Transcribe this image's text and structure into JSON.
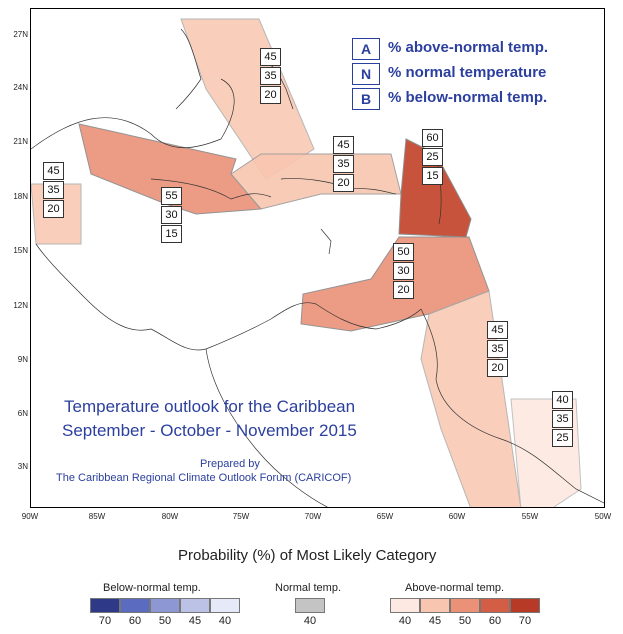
{
  "y_ticks": [
    "27N",
    "24N",
    "21N",
    "18N",
    "15N",
    "12N",
    "9N",
    "6N",
    "3N"
  ],
  "x_ticks": [
    "90W",
    "85W",
    "80W",
    "75W",
    "70W",
    "65W",
    "60W",
    "55W",
    "50W"
  ],
  "key": [
    {
      "letter": "A",
      "text": "% above-normal temp."
    },
    {
      "letter": "N",
      "text": "% normal temperature"
    },
    {
      "letter": "B",
      "text": "% below-normal temp."
    }
  ],
  "regions": [
    {
      "name": "bahamas",
      "values": [
        "45",
        "35",
        "20"
      ]
    },
    {
      "name": "central-america-north",
      "values": [
        "45",
        "35",
        "20"
      ]
    },
    {
      "name": "cayman-jamaica-cuba",
      "values": [
        "55",
        "30",
        "15"
      ]
    },
    {
      "name": "hispaniola-pr",
      "values": [
        "45",
        "35",
        "20"
      ]
    },
    {
      "name": "leeward-islands",
      "values": [
        "60",
        "25",
        "15"
      ]
    },
    {
      "name": "windward-abc",
      "values": [
        "50",
        "30",
        "20"
      ]
    },
    {
      "name": "guyana-trinidad",
      "values": [
        "45",
        "35",
        "20"
      ]
    },
    {
      "name": "suriname-french-guiana",
      "values": [
        "40",
        "35",
        "25"
      ]
    }
  ],
  "title": {
    "line1": "Temperature outlook for the Caribbean",
    "line2": "September - October - November 2015",
    "prepared": "Prepared by",
    "forum": "The Caribbean Regional Climate Outlook Forum (CARICOF)"
  },
  "legend": {
    "title": "Probability (%) of Most Likely Category",
    "below_label": "Below-normal temp.",
    "normal_label": "Normal temp.",
    "above_label": "Above-normal temp.",
    "below_values": [
      "70",
      "60",
      "50",
      "45",
      "40"
    ],
    "normal_values": [
      "40"
    ],
    "above_values": [
      "40",
      "45",
      "50",
      "60",
      "70"
    ],
    "below_colors": [
      "#2e3a87",
      "#5b6bbf",
      "#8d97d3",
      "#bcc2e6",
      "#e6e9f7"
    ],
    "normal_colors": [
      "#c4c4c4"
    ],
    "above_colors": [
      "#fde9e1",
      "#f8c6b0",
      "#ea9177",
      "#d35d45",
      "#b63a26"
    ]
  }
}
